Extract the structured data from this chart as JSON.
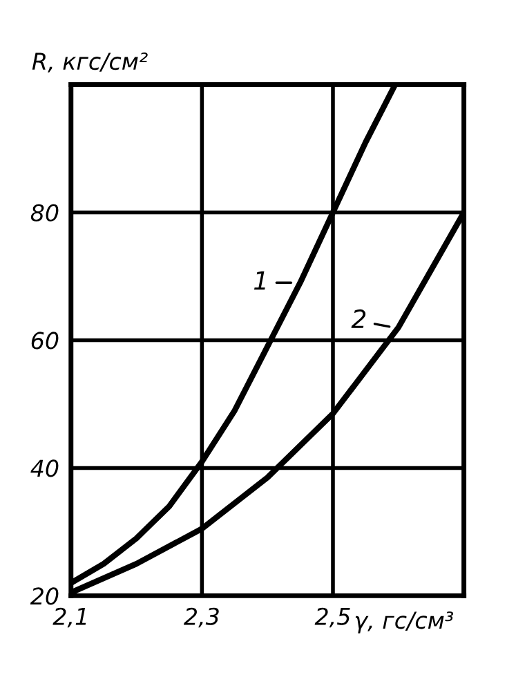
{
  "chart_data": {
    "type": "line",
    "xlabel": "γ, гс/см³",
    "ylabel": "R, кгс/см²",
    "xlim": [
      2.1,
      2.7
    ],
    "ylim": [
      20,
      100
    ],
    "xticks": [
      {
        "value": 2.1,
        "label": "2,1"
      },
      {
        "value": 2.3,
        "label": "2,3"
      },
      {
        "value": 2.5,
        "label": "2,5"
      },
      {
        "value": 2.7,
        "label": null
      }
    ],
    "yticks": [
      20,
      40,
      60,
      80,
      {
        "value": 100,
        "label": null
      }
    ],
    "grid": true,
    "legend": "right",
    "marker": "none",
    "line_style": "solid",
    "series": [
      {
        "name": "1",
        "color": "#000000",
        "x": [
          2.1,
          2.15,
          2.2,
          2.25,
          2.3,
          2.35,
          2.4,
          2.45,
          2.5,
          2.55,
          2.595
        ],
        "values": [
          22,
          25,
          29,
          34,
          41,
          49,
          59,
          69,
          80,
          91,
          100
        ]
      },
      {
        "name": "2",
        "color": "#000000",
        "x": [
          2.1,
          2.2,
          2.3,
          2.4,
          2.5,
          2.6,
          2.7
        ],
        "values": [
          20.5,
          25,
          30.5,
          38.5,
          48.5,
          62,
          80
        ]
      }
    ]
  }
}
